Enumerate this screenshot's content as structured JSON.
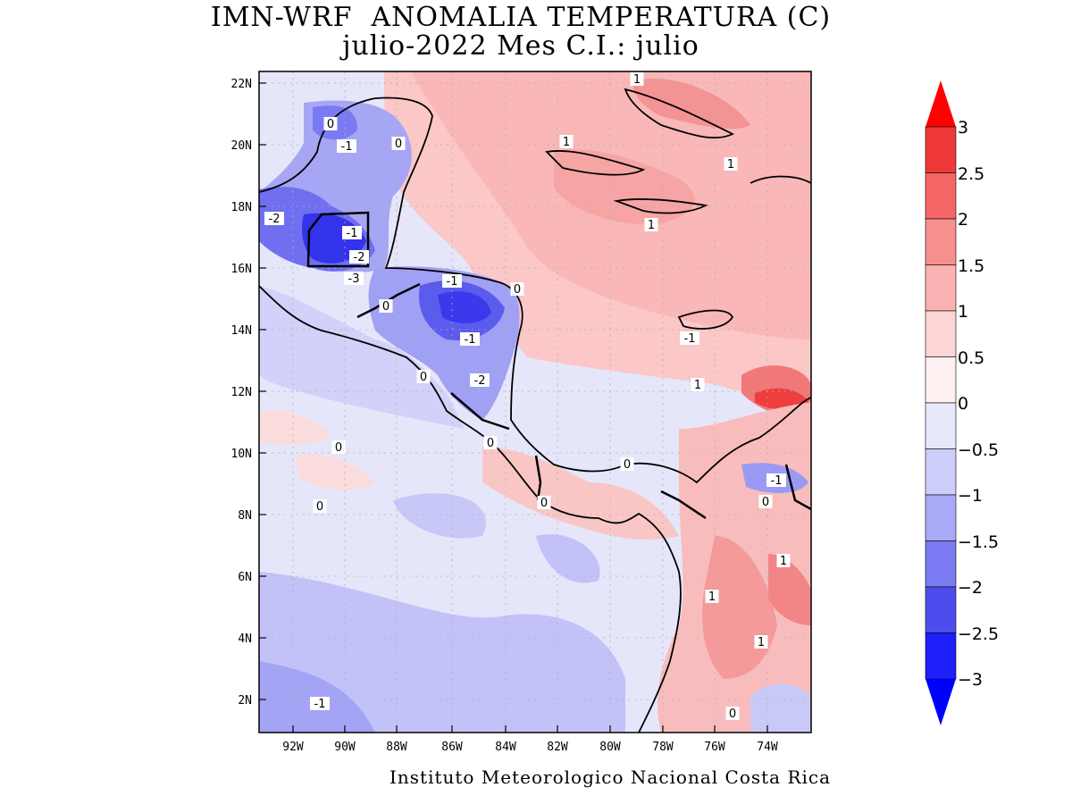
{
  "header": {
    "title_line1": "IMN-WRF  ANOMALIA TEMPERATURA (C)",
    "title_line2": "julio-2022 Mes C.I.: julio"
  },
  "footer": {
    "credit": "Instituto Meteorologico Nacional Costa Rica"
  },
  "map": {
    "lon_range": [
      -93.5,
      -72.5
    ],
    "lat_range": [
      1,
      22.5
    ],
    "lon_ticks": [
      "92W",
      "90W",
      "88W",
      "86W",
      "84W",
      "82W",
      "80W",
      "78W",
      "76W",
      "74W"
    ],
    "lat_ticks": [
      "22N",
      "20N",
      "18N",
      "16N",
      "14N",
      "12N",
      "10N",
      "8N",
      "6N",
      "4N",
      "2N"
    ],
    "contour_labels": [
      "0",
      "-1",
      "0",
      "1",
      "1",
      "1",
      "-2",
      "-1",
      "-2",
      "-3",
      "-1",
      "0",
      "0",
      "-1",
      "-2",
      "-1",
      "1",
      "0",
      "0",
      "0",
      "0",
      "0",
      "0",
      "-1",
      "0",
      "1",
      "1",
      "1",
      "1",
      "0",
      "-1"
    ]
  },
  "colorbar": {
    "levels": [
      "3",
      "2.5",
      "2",
      "1.5",
      "1",
      "0.5",
      "0",
      "−0.5",
      "−1",
      "−1.5",
      "−2",
      "−2.5",
      "−3"
    ],
    "colors": [
      "#ff0000",
      "#ef3939",
      "#f66565",
      "#f88f8f",
      "#fbb2b2",
      "#fdd5d5",
      "#fef0f0",
      "#e8e8fc",
      "#cdcdfa",
      "#a9a9f7",
      "#7a7af2",
      "#4d4dee",
      "#1f1ff9",
      "#0000ff"
    ]
  }
}
